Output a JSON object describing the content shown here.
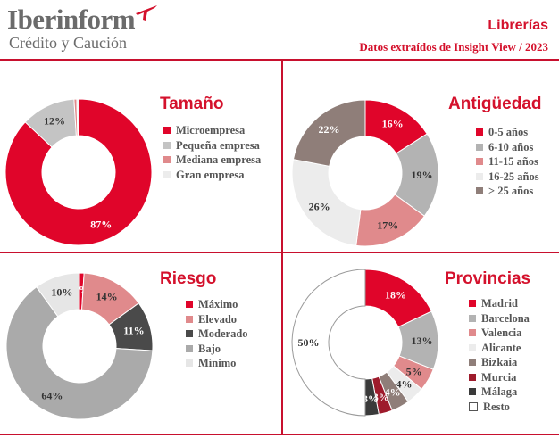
{
  "header": {
    "brand": "Iberinform",
    "brand_sub": "Crédito y Caución",
    "title": "Librerías",
    "subtitle": "Datos extraídos de Insight View / 2023"
  },
  "colors": {
    "accent": "#c8102e",
    "text_gray": "#6b6b6b"
  },
  "chart_data": [
    {
      "type": "pie",
      "title": "Tamaño",
      "categories": [
        "Microempresa",
        "Pequeña empresa",
        "Mediana empresa",
        "Gran empresa"
      ],
      "values": [
        87,
        12,
        0.6,
        0.4
      ],
      "labels": [
        "87%",
        "12%",
        "",
        ""
      ],
      "colors": [
        "#e0052a",
        "#c4c4c4",
        "#e08a8c",
        "#ececec"
      ],
      "legend_position": "right"
    },
    {
      "type": "pie",
      "title": "Antigüedad",
      "categories": [
        "0-5 años",
        "6-10 años",
        "11-15 años",
        "16-25 años",
        "> 25 años"
      ],
      "values": [
        16,
        19,
        17,
        26,
        22
      ],
      "labels": [
        "16%",
        "19%",
        "17%",
        "26%",
        "22%"
      ],
      "colors": [
        "#e0052a",
        "#b3b3b3",
        "#e08a8c",
        "#ececec",
        "#8f7e79"
      ],
      "legend_position": "right"
    },
    {
      "type": "pie",
      "title": "Riesgo",
      "categories": [
        "Máximo",
        "Elevado",
        "Moderado",
        "Bajo",
        "Mínimo"
      ],
      "values": [
        1,
        14,
        11,
        64,
        10
      ],
      "labels": [
        "1%",
        "14%",
        "11%",
        "64%",
        "10%"
      ],
      "colors": [
        "#e0052a",
        "#e08a8c",
        "#4a4a4a",
        "#aaaaaa",
        "#e6e6e6"
      ],
      "legend_position": "right"
    },
    {
      "type": "pie",
      "title": "Provincias",
      "categories": [
        "Madrid",
        "Barcelona",
        "Valencia",
        "Alicante",
        "Bizkaia",
        "Murcia",
        "Málaga",
        "Resto"
      ],
      "values": [
        18,
        13,
        5,
        4,
        4,
        3,
        3,
        50
      ],
      "labels": [
        "18%",
        "13%",
        "5%",
        "4%",
        "4%",
        "3%",
        "3%",
        "50%"
      ],
      "colors": [
        "#e0052a",
        "#b3b3b3",
        "#e08a8c",
        "#ececec",
        "#8f7e79",
        "#9e1b2c",
        "#3a3a3a",
        "#ffffff"
      ],
      "legend_position": "right"
    }
  ]
}
